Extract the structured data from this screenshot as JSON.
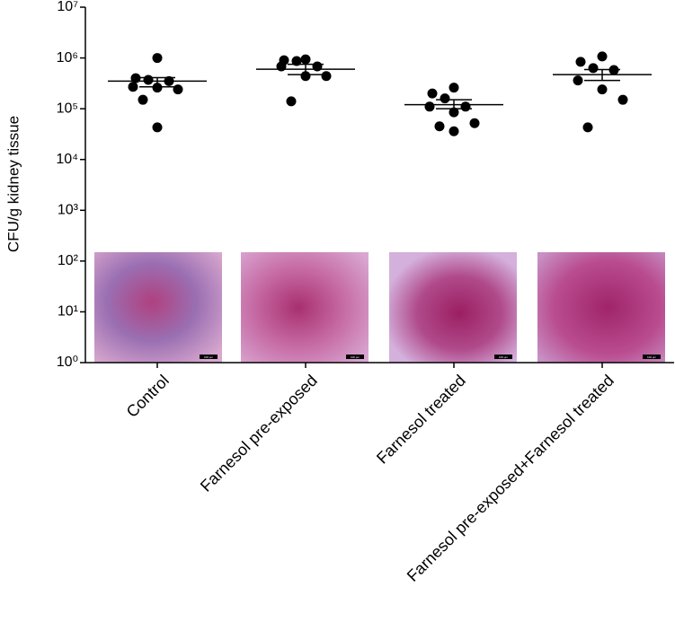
{
  "chart_data": {
    "type": "scatter",
    "ylabel": "CFU/g kidney tissue",
    "categories": [
      "Control",
      "Farnesol pre-exposed",
      "Farnesol treated",
      "Farnesol pre-exposed+Farnesol treated"
    ],
    "series": [
      {
        "name": "Control",
        "color": "#000000",
        "values": [
          1000000,
          400000,
          370000,
          350000,
          270000,
          260000,
          240000,
          150000,
          43000
        ]
      },
      {
        "name": "Farnesol pre-exposed",
        "color": "#000000",
        "values": [
          940000,
          900000,
          870000,
          680000,
          680000,
          440000,
          440000,
          140000
        ]
      },
      {
        "name": "Farnesol treated",
        "color": "#000000",
        "values": [
          260000,
          200000,
          160000,
          110000,
          110000,
          85000,
          52000,
          45000,
          36000
        ]
      },
      {
        "name": "Farnesol pre-exposed+Farnesol treated",
        "color": "#000000",
        "values": [
          1070000,
          840000,
          630000,
          580000,
          360000,
          240000,
          150000,
          43000
        ]
      }
    ],
    "mean": [
      350000,
      600000,
      120000,
      470000
    ],
    "sem_high": [
      410000,
      750000,
      150000,
      590000
    ],
    "sem_low": [
      270000,
      470000,
      100000,
      360000
    ],
    "log_y": true,
    "ylim": [
      1,
      10000000
    ],
    "yticks": [
      {
        "value": 1,
        "label": "10⁰"
      },
      {
        "value": 10,
        "label": "10¹"
      },
      {
        "value": 100,
        "label": "10²"
      },
      {
        "value": 1000,
        "label": "10³"
      },
      {
        "value": 10000,
        "label": "10⁴"
      },
      {
        "value": 100000,
        "label": "10⁵"
      },
      {
        "value": 1000000,
        "label": "10⁶"
      },
      {
        "value": 10000000,
        "label": "10⁷"
      }
    ],
    "image_scale_label": "100 µm"
  }
}
